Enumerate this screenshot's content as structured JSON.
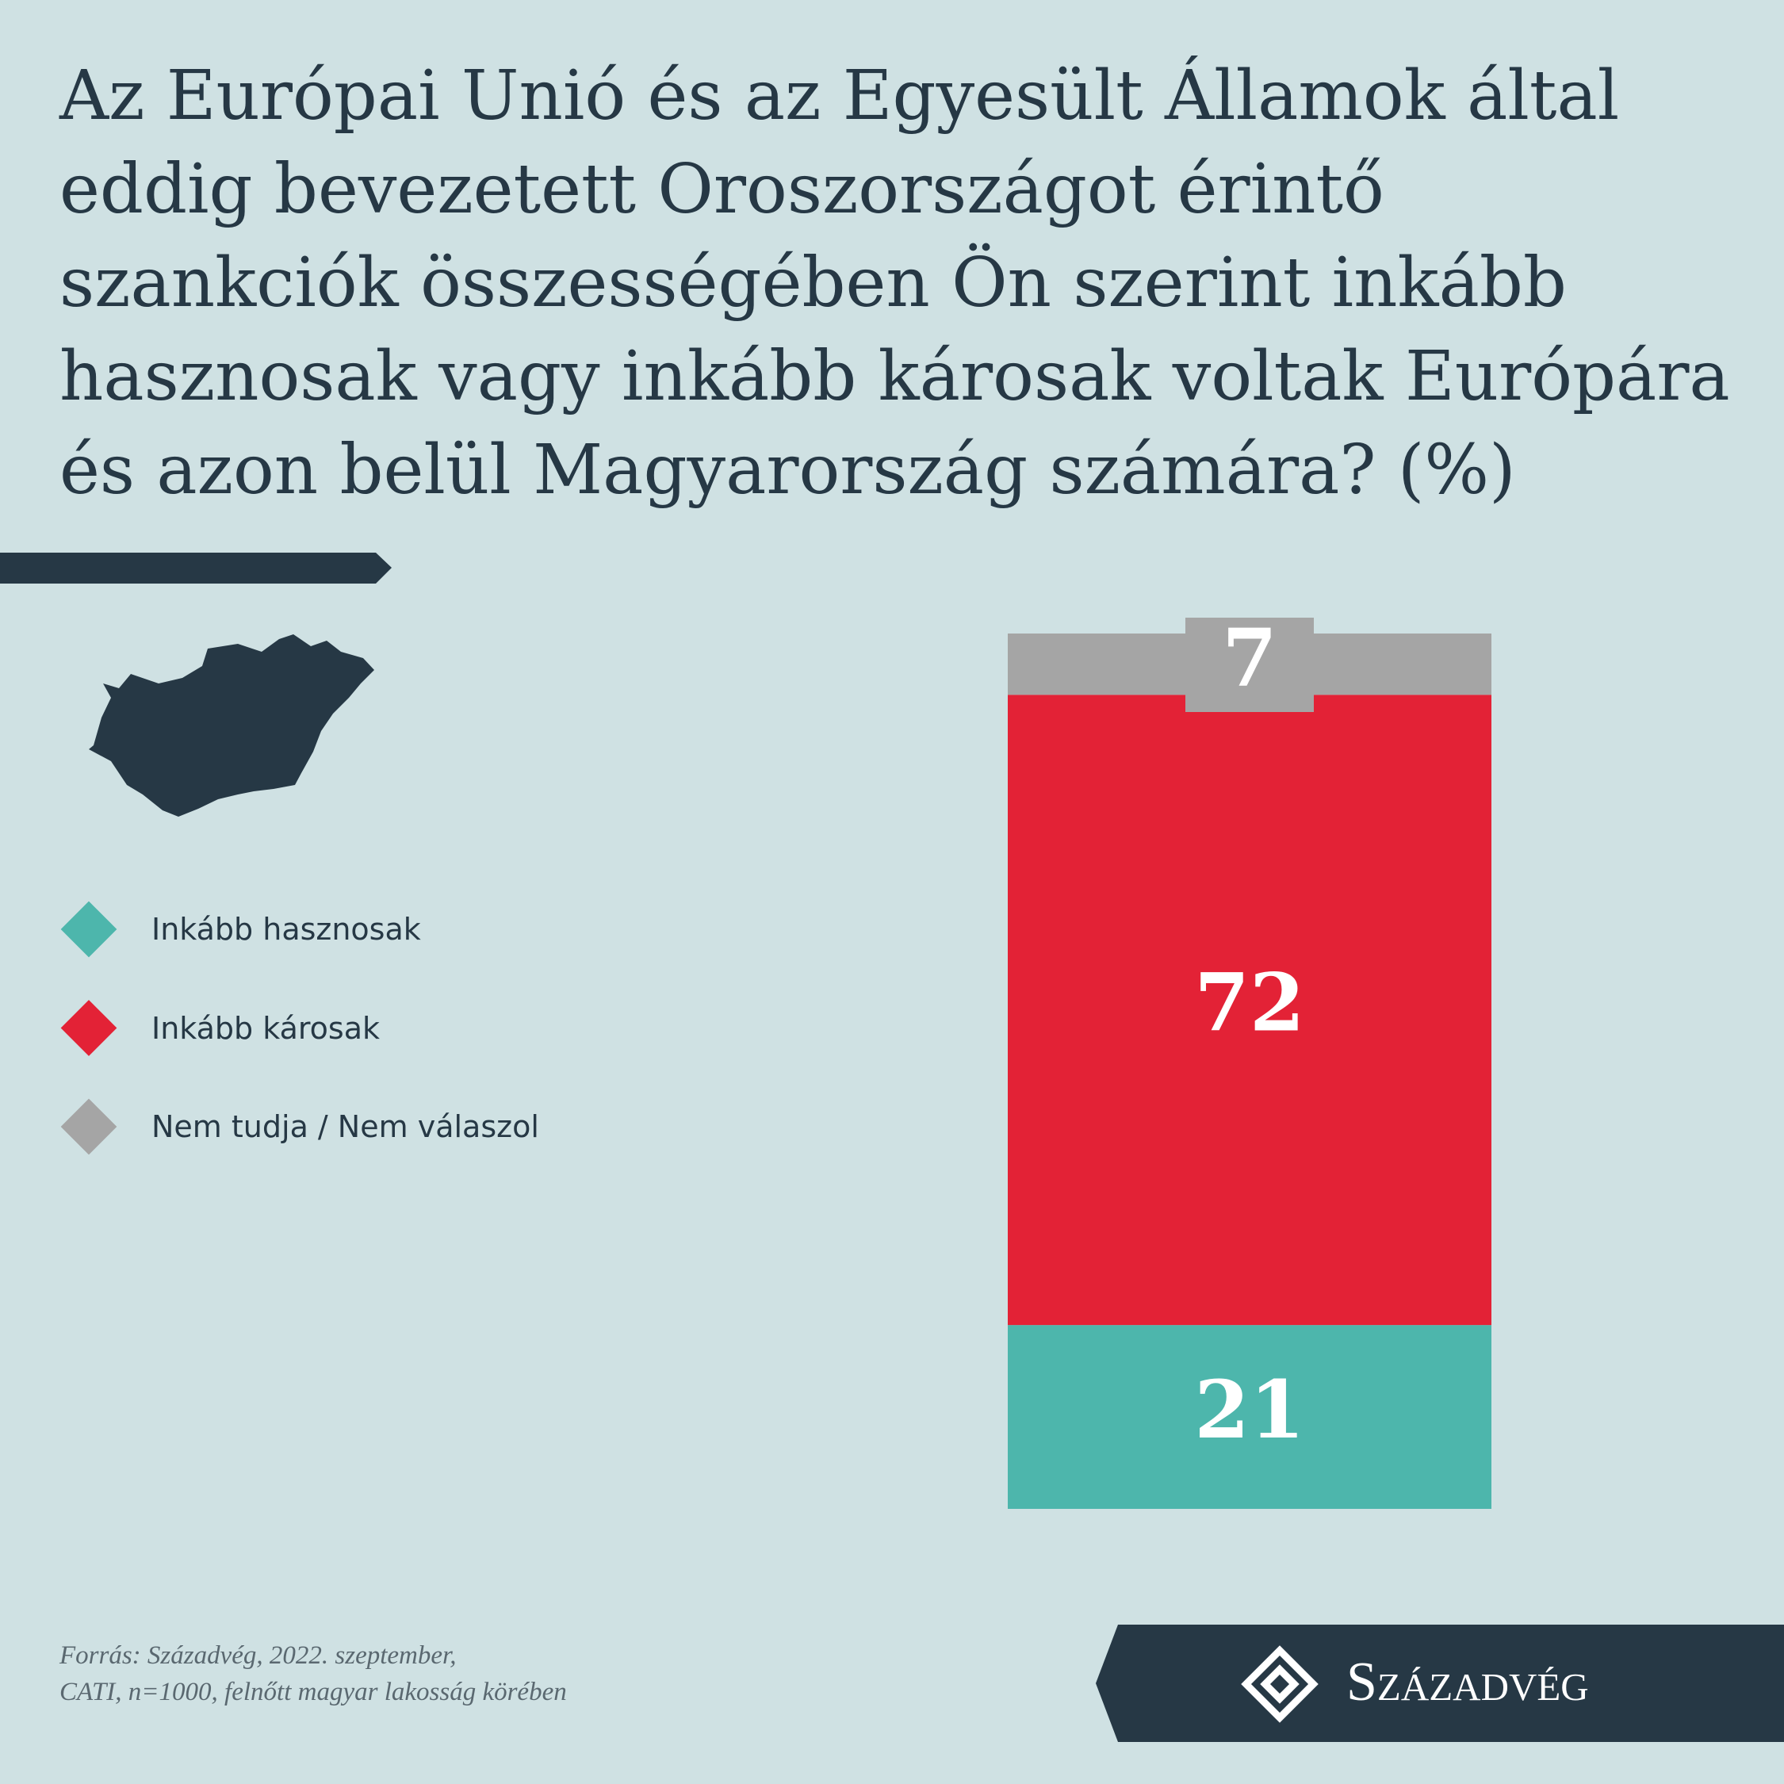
{
  "chart_data": {
    "type": "bar",
    "stacked": true,
    "title": "Az Európai Unió és az Egyesült Államok által eddig bevezetett Oroszországot érintő szankciók összességében Ön szerint inkább hasznosak vagy inkább károsak voltak Európára és azon belül Magyarország számára?  (%)",
    "categories": [
      null
    ],
    "series": [
      {
        "name": "Inkább hasznosak",
        "color": "#4db6ac",
        "values": [
          21
        ]
      },
      {
        "name": "Inkább károsak",
        "color": "#e32236",
        "values": [
          72
        ]
      },
      {
        "name": "Nem tudja / Nem válaszol",
        "color": "#a5a5a5",
        "values": [
          7
        ]
      }
    ],
    "source": [
      "Forrás: Századvég, 2022. szeptember,",
      "CATI, n=1000, felnőtt magyar lakosság körében"
    ],
    "logo": "Századvég"
  }
}
